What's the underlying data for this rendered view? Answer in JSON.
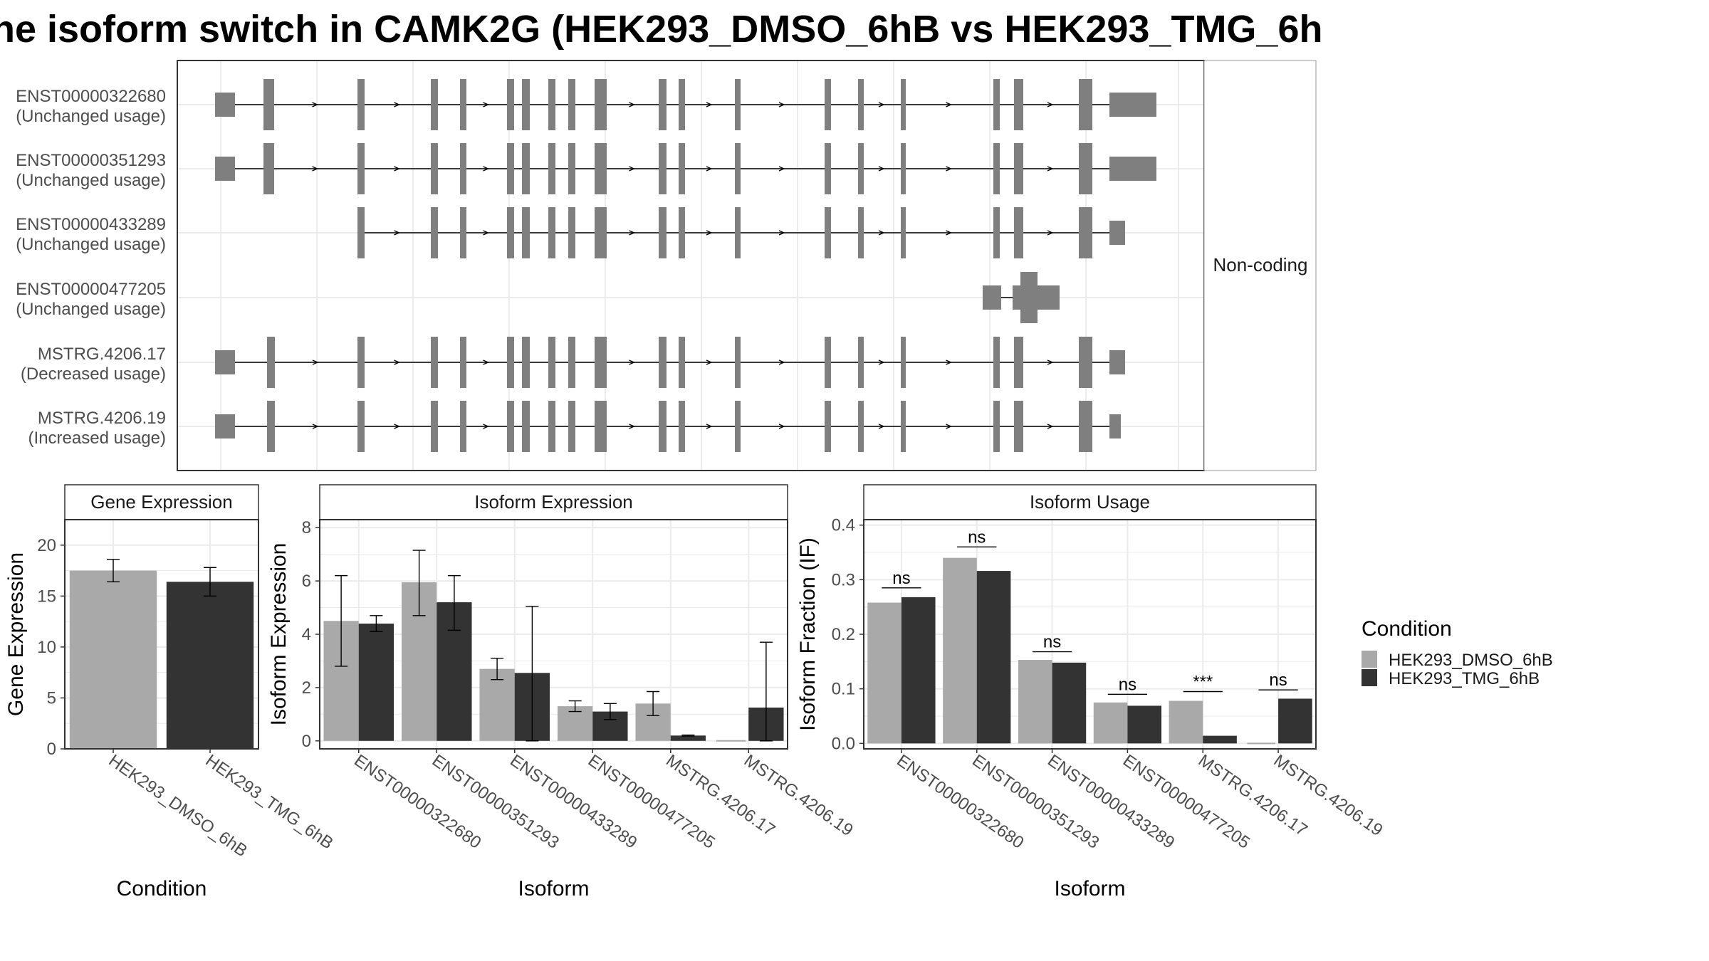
{
  "title": "ne isoform switch in CAMK2G (HEK293_DMSO_6hB vs HEK293_TMG_6h",
  "colors": {
    "exon": "#7f7f7f",
    "dmso": "#a9a9a9",
    "tmg": "#333333",
    "panel_border": "#333333",
    "grid": "#ebebeb",
    "strip_bg": "#ffffff",
    "text": "#4d4d4d"
  },
  "chart_data": [
    {
      "type": "gene-structure",
      "facet_label": "Non-coding",
      "transcripts": [
        {
          "id": "ENST00000322680",
          "usage": "(Unchanged usage)"
        },
        {
          "id": "ENST00000351293",
          "usage": "(Unchanged usage)"
        },
        {
          "id": "ENST00000433289",
          "usage": "(Unchanged usage)"
        },
        {
          "id": "ENST00000477205",
          "usage": "(Unchanged usage)"
        },
        {
          "id": "MSTRG.4206.17",
          "usage": "(Decreased usage)"
        },
        {
          "id": "MSTRG.4206.19",
          "usage": "(Increased usage)"
        }
      ]
    },
    {
      "type": "bar",
      "title": "Gene Expression",
      "xlabel": "Condition",
      "ylabel": "Gene Expression",
      "ylim": [
        0,
        22.5
      ],
      "yticks": [
        0,
        5,
        10,
        15,
        20
      ],
      "categories": [
        "HEK293_DMSO_6hB",
        "HEK293_TMG_6hB"
      ],
      "values": [
        17.5,
        16.4
      ],
      "err_low": [
        16.4,
        15.0
      ],
      "err_high": [
        18.6,
        17.8
      ]
    },
    {
      "type": "bar",
      "title": "Isoform Expression",
      "xlabel": "Isoform",
      "ylabel": "Isoform Expression",
      "ylim": [
        -0.3,
        8.3
      ],
      "yticks": [
        0,
        2,
        4,
        6,
        8
      ],
      "categories": [
        "ENST00000322680",
        "ENST00000351293",
        "ENST00000433289",
        "ENST00000477205",
        "MSTRG.4206.17",
        "MSTRG.4206.19"
      ],
      "series": [
        {
          "name": "HEK293_DMSO_6hB",
          "values": [
            4.5,
            5.95,
            2.7,
            1.3,
            1.4,
            0.0
          ],
          "err_low": [
            2.8,
            4.7,
            2.3,
            1.1,
            0.95,
            0.0
          ],
          "err_high": [
            6.2,
            7.15,
            3.1,
            1.5,
            1.85,
            0.0
          ]
        },
        {
          "name": "HEK293_TMG_6hB",
          "values": [
            4.4,
            5.2,
            2.55,
            1.1,
            0.2,
            1.25
          ],
          "err_low": [
            4.1,
            4.15,
            0.0,
            0.8,
            0.18,
            0.0
          ],
          "err_high": [
            4.7,
            6.2,
            5.05,
            1.4,
            0.22,
            3.7
          ]
        }
      ]
    },
    {
      "type": "bar",
      "title": "Isoform Usage",
      "xlabel": "Isoform",
      "ylabel": "Isoform Fraction (IF)",
      "ylim": [
        -0.01,
        0.41
      ],
      "yticks": [
        0.0,
        0.1,
        0.2,
        0.3,
        0.4
      ],
      "ytick_labels": [
        "0.0",
        "0.1",
        "0.2",
        "0.3",
        "0.4"
      ],
      "categories": [
        "ENST00000322680",
        "ENST00000351293",
        "ENST00000433289",
        "ENST00000477205",
        "MSTRG.4206.17",
        "MSTRG.4206.19"
      ],
      "series": [
        {
          "name": "HEK293_DMSO_6hB",
          "values": [
            0.258,
            0.34,
            0.153,
            0.075,
            0.078,
            0.0
          ]
        },
        {
          "name": "HEK293_TMG_6hB",
          "values": [
            0.268,
            0.316,
            0.148,
            0.069,
            0.014,
            0.082
          ]
        }
      ],
      "significance": [
        "ns",
        "ns",
        "ns",
        "ns",
        "***",
        "ns"
      ],
      "significance_y": [
        0.285,
        0.36,
        0.168,
        0.09,
        0.095,
        0.098
      ]
    }
  ],
  "legend": {
    "title": "Condition",
    "items": [
      "HEK293_DMSO_6hB",
      "HEK293_TMG_6hB"
    ]
  }
}
